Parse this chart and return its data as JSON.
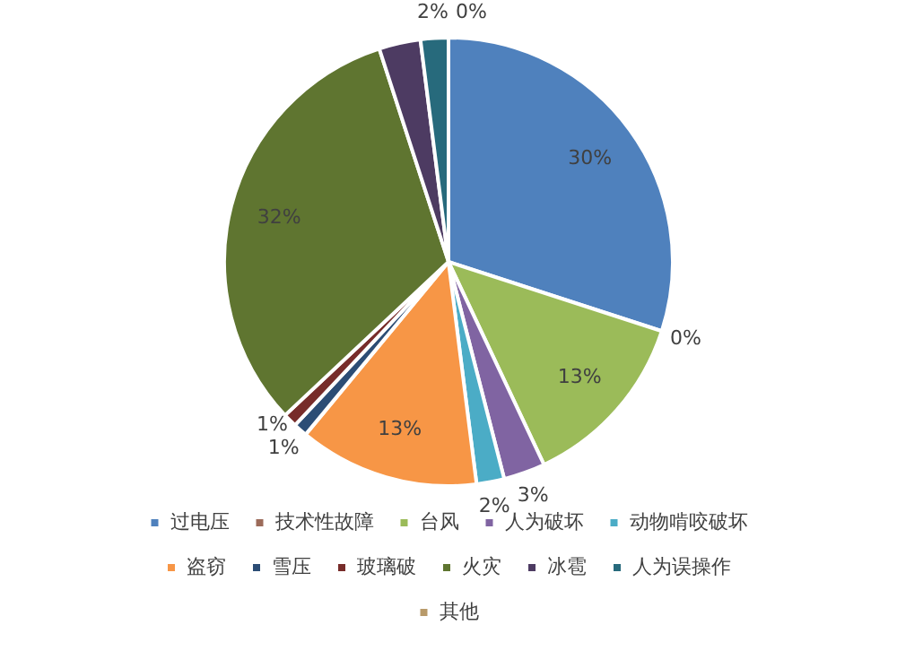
{
  "chart_data": {
    "type": "pie",
    "categories": [
      "过电压",
      "技术性故障",
      "台风",
      "人为破坏",
      "动物啃咬破坏",
      "盗窃",
      "雪压",
      "玻璃破",
      "火灾",
      "冰雹",
      "人为误操作",
      "其他"
    ],
    "values": [
      30,
      0,
      13,
      3,
      2,
      13,
      1,
      1,
      32,
      3,
      2,
      0
    ],
    "colors": [
      "#4f81bd",
      "#9c6b5a",
      "#9bbb59",
      "#8064a2",
      "#4bacc6",
      "#f79646",
      "#2c4d75",
      "#772c2a",
      "#5f7530",
      "#4d3b62",
      "#276a7c",
      "#b89a6a"
    ],
    "value_labels": [
      "30%",
      "0%",
      "13%",
      "3%",
      "2%",
      "13%",
      "1%",
      "1%",
      "32%",
      null,
      "2%",
      "0%"
    ],
    "legend": "bottom"
  }
}
